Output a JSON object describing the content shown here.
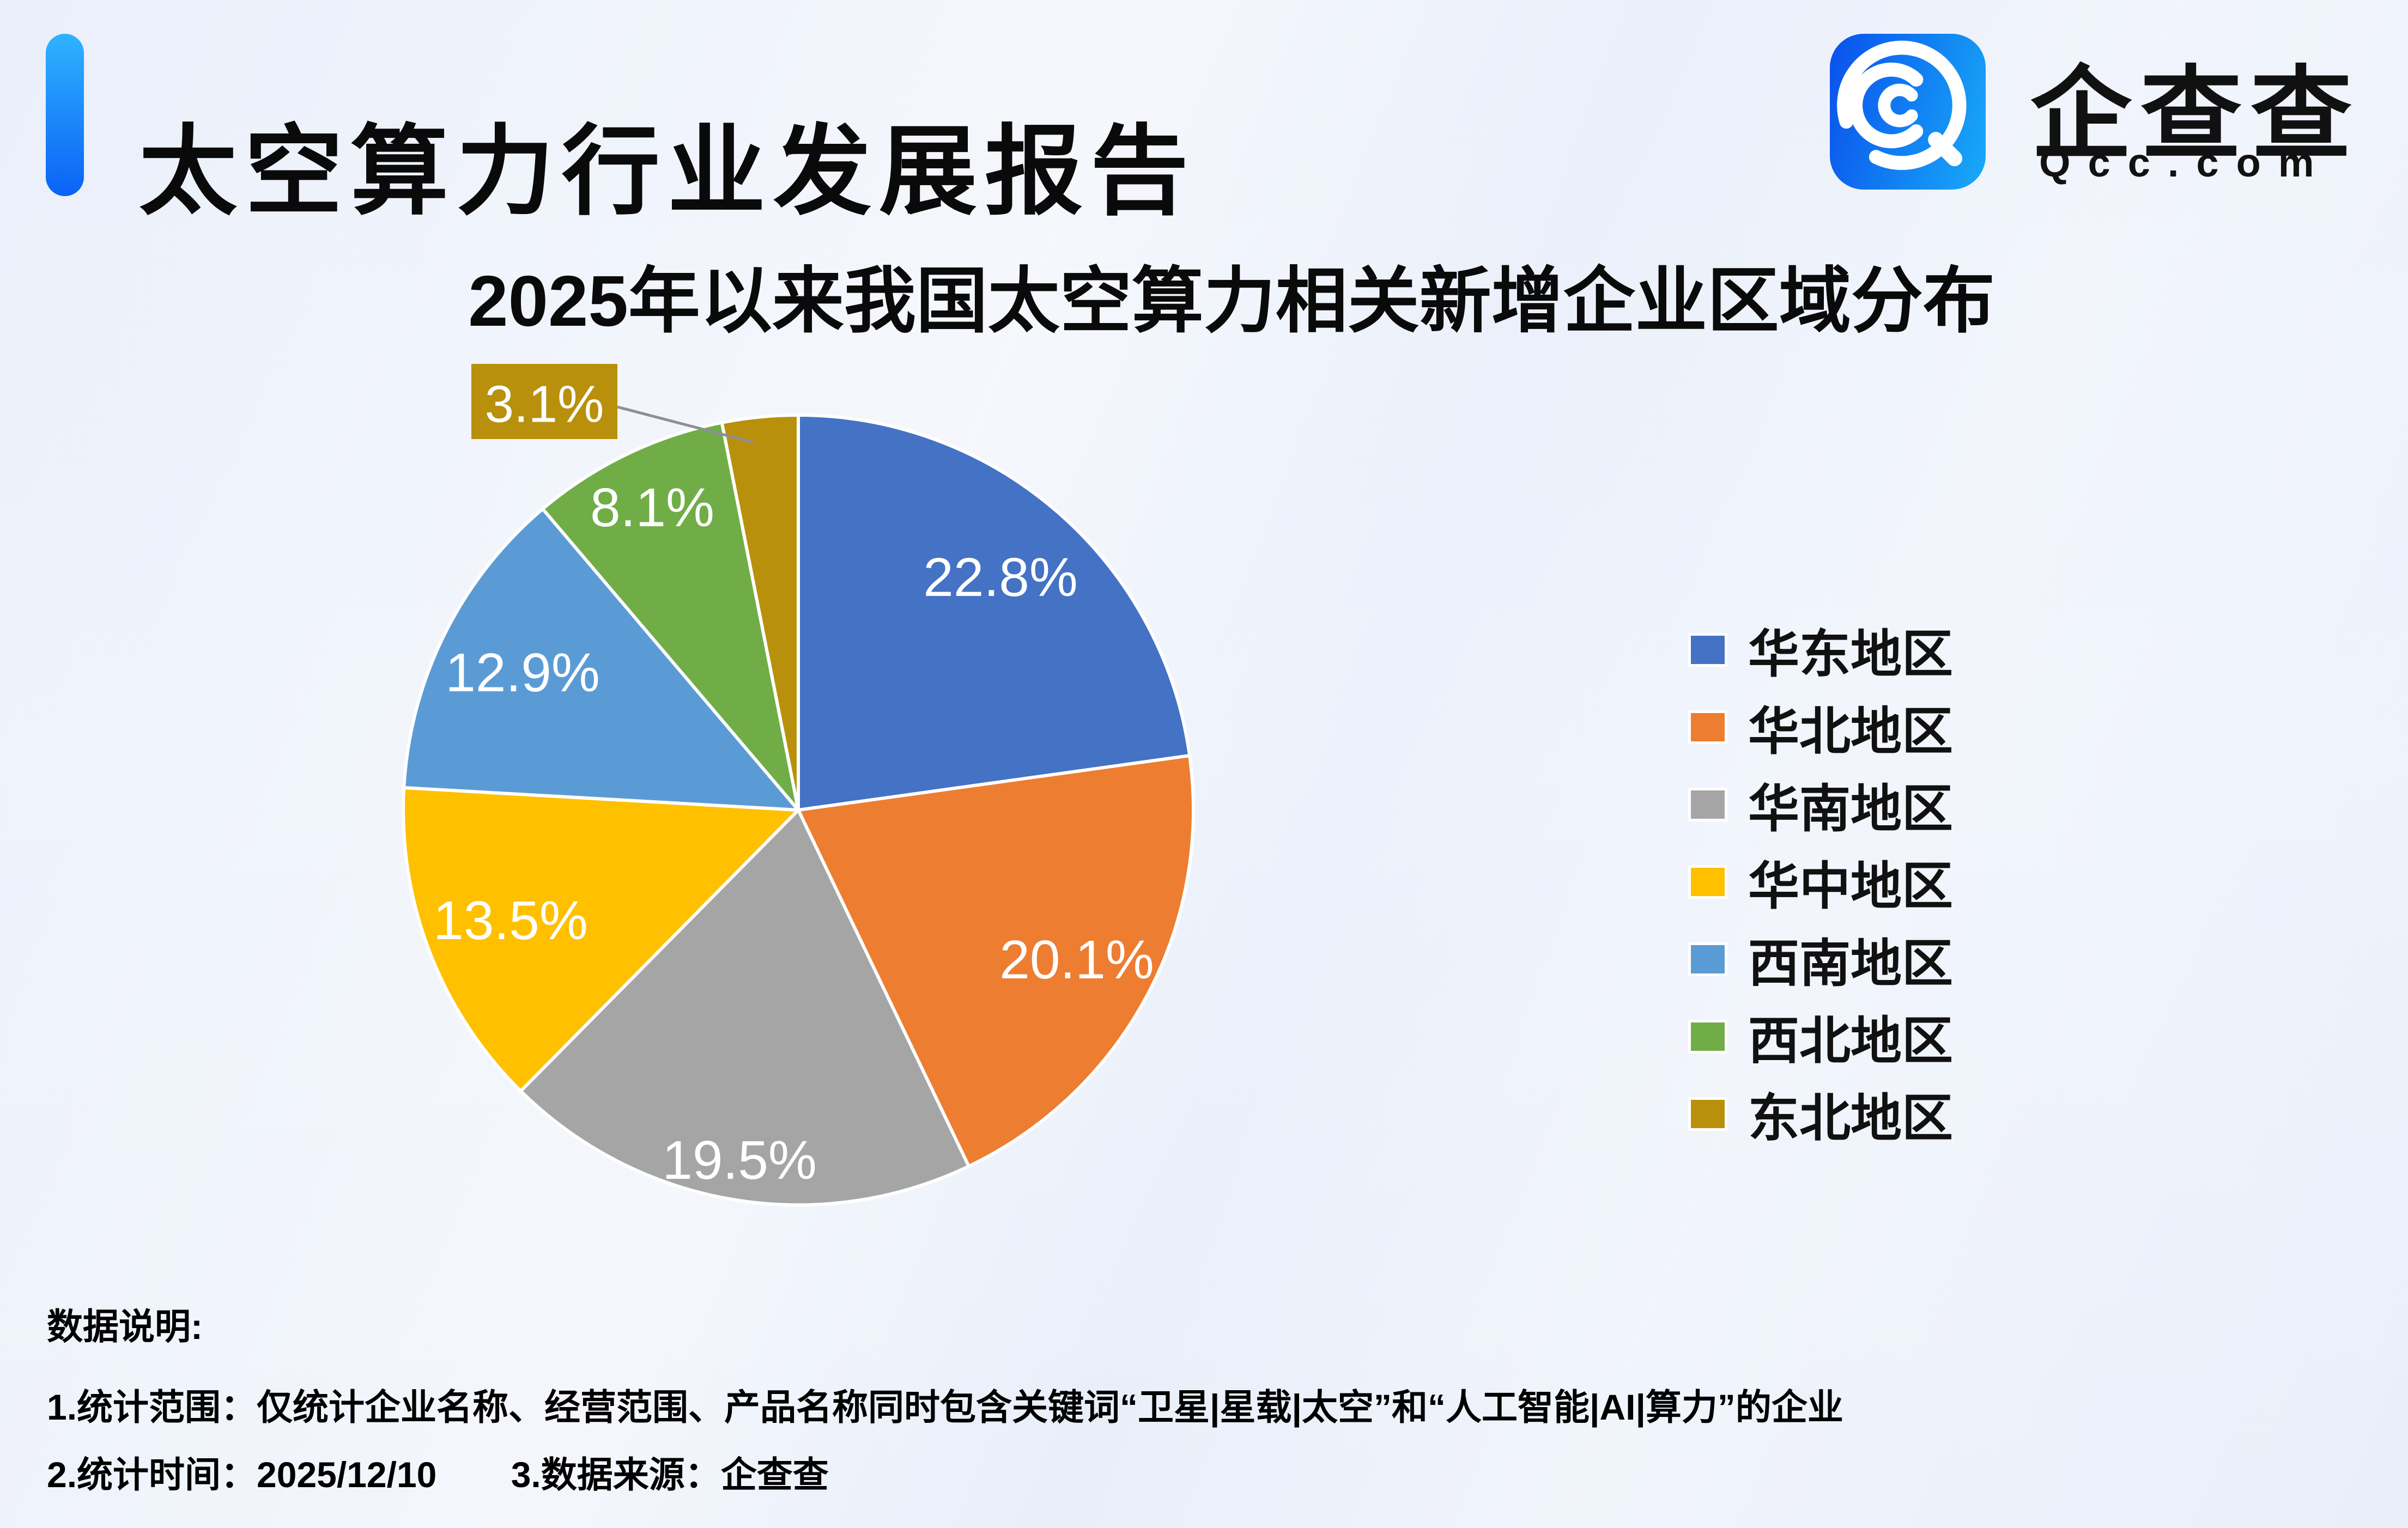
{
  "header": {
    "title": "太空算力行业发展报告",
    "accent_gradient": [
      "#2FB3FF",
      "#0A62F5"
    ]
  },
  "brand": {
    "name_cn": "企查查",
    "domain": "Qcc.com",
    "tile_gradient": [
      "#0A50EC",
      "#18ABF8"
    ]
  },
  "chart_data": {
    "type": "pie",
    "title": "2025年以来我国太空算力相关新增企业区域分布",
    "start_angle_deg": 0,
    "direction": "clockwise",
    "legend_position": "right",
    "label_format": "percent",
    "label_color": "#FFFFFF",
    "leader_line_color": "#8F8F8F",
    "slices": [
      {
        "label": "华东地区",
        "value": 22.8,
        "color": "#4472C4",
        "label_r": 0.78
      },
      {
        "label": "华北地区",
        "value": 20.1,
        "color": "#ED7D31",
        "label_r": 0.8
      },
      {
        "label": "华南地区",
        "value": 19.5,
        "color": "#A5A5A5",
        "label_r": 0.9
      },
      {
        "label": "华中地区",
        "value": 13.5,
        "color": "#FFC000",
        "label_r": 0.78
      },
      {
        "label": "西南地区",
        "value": 12.9,
        "color": "#5B9BD5",
        "label_r": 0.78
      },
      {
        "label": "西北地区",
        "value": 8.1,
        "color": "#70AD47",
        "label_r": 0.85
      },
      {
        "label": "东北地区",
        "value": 3.1,
        "color": "#B8900B",
        "callout": true
      }
    ]
  },
  "footer": {
    "heading": "数据说明:",
    "line1": "1.统计范围：仅统计企业名称、经营范围、产品名称同时包含关键词“卫星|星载|太空”和“人工智能|AI|算力”的企业",
    "line2_part1": "2.统计时间：2025/12/10",
    "line2_part2": "3.数据来源：企查查"
  }
}
